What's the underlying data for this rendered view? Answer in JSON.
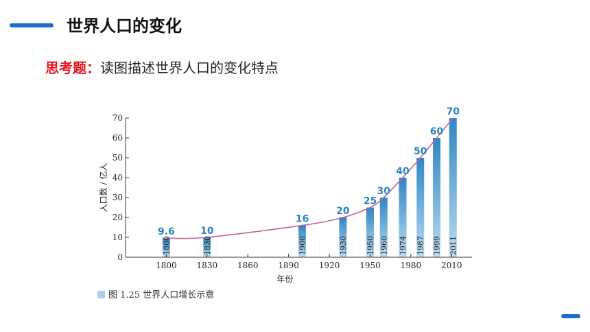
{
  "header": {
    "title": "世界人口的变化"
  },
  "question": {
    "label": "思考题",
    "colon": "：",
    "text": "读图描述世界人口的变化特点"
  },
  "chart_data": {
    "type": "bar",
    "ylabel": "人口数 / 亿人",
    "xlabel": "年份",
    "caption": "图 1.25   世界人口增长示意",
    "ylim": [
      0,
      70
    ],
    "yticks": [
      0,
      10,
      20,
      30,
      40,
      50,
      60,
      70
    ],
    "xlim": [
      1770,
      2025
    ],
    "xticks": [
      1800,
      1830,
      1860,
      1890,
      1920,
      1950,
      1980,
      2010
    ],
    "bars": [
      {
        "year": 1800,
        "value": 9.6,
        "label": "9.6",
        "year_label": "1800"
      },
      {
        "year": 1830,
        "value": 10,
        "label": "10",
        "year_label": "1830"
      },
      {
        "year": 1900,
        "value": 16,
        "label": "16",
        "year_label": "1900"
      },
      {
        "year": 1930,
        "value": 20,
        "label": "20",
        "year_label": "1930"
      },
      {
        "year": 1950,
        "value": 25,
        "label": "25",
        "year_label": "1950"
      },
      {
        "year": 1960,
        "value": 30,
        "label": "30",
        "year_label": "1960"
      },
      {
        "year": 1974,
        "value": 40,
        "label": "40",
        "year_label": "1974"
      },
      {
        "year": 1987,
        "value": 50,
        "label": "50",
        "year_label": "1987"
      },
      {
        "year": 1999,
        "value": 60,
        "label": "60",
        "year_label": "1999"
      },
      {
        "year": 2011,
        "value": 70,
        "label": "70",
        "year_label": "2011"
      }
    ],
    "colors": {
      "bar_top": "#2f86c3",
      "bar_bottom": "#b9d9ef",
      "curve": "#c8609a",
      "label": "#2a86c2",
      "legend": "#a9d2ea"
    }
  }
}
